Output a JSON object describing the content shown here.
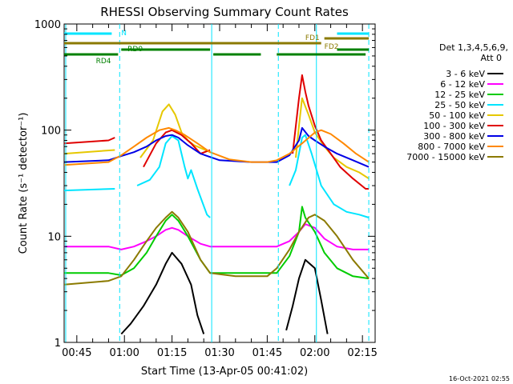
{
  "chart_data": {
    "type": "line",
    "title": "RHESSI Observing Summary Count Rates",
    "xlabel": "Start Time (13-Apr-05 00:41:02)",
    "ylabel": "Count Rate (s⁻¹ detector⁻¹)",
    "footer": "16-Oct-2021 02:55",
    "yscale": "log",
    "ylim": [
      1,
      1000
    ],
    "y_ticks": [
      {
        "value": 1,
        "label": "1"
      },
      {
        "value": 10,
        "label": "10"
      },
      {
        "value": 100,
        "label": "100"
      },
      {
        "value": 1000,
        "label": "1000"
      }
    ],
    "xlim": [
      "00:41",
      "02:19"
    ],
    "x_ticks": [
      {
        "value": "00:45",
        "label": "00:45"
      },
      {
        "value": "01:00",
        "label": "01:00"
      },
      {
        "value": "01:15",
        "label": "01:15"
      },
      {
        "value": "01:30",
        "label": "01:30"
      },
      {
        "value": "01:45",
        "label": "01:45"
      },
      {
        "value": "02:00",
        "label": "02:00"
      },
      {
        "value": "02:15",
        "label": "02:15"
      }
    ],
    "legend": {
      "placement": "right",
      "header": [
        "Det 1,3,4,5,6,9,",
        "Att 0"
      ]
    },
    "series": [
      {
        "name": "3 - 6 keV",
        "color": "#000000",
        "x": [
          "00:41",
          "00:58",
          "00:59",
          "01:02",
          "01:06",
          "01:10",
          "01:13",
          "01:15",
          "01:18",
          "01:21",
          "01:23",
          "01:25",
          "01:27",
          "01:48",
          "01:51",
          "01:53",
          "01:55",
          "01:57",
          "02:00",
          "02:02",
          "02:04",
          "02:06"
        ],
        "y": [
          null,
          null,
          1.2,
          1.5,
          2.2,
          3.5,
          5.5,
          7,
          5.5,
          3.5,
          1.8,
          1.2,
          null,
          null,
          1.3,
          2.2,
          4,
          6,
          5,
          2.5,
          1.2,
          null
        ]
      },
      {
        "name": "6 - 12 keV",
        "color": "#ff00ff",
        "x": [
          "00:41",
          "00:55",
          "00:59",
          "01:03",
          "01:07",
          "01:10",
          "01:13",
          "01:15",
          "01:17",
          "01:20",
          "01:24",
          "01:27",
          "01:35",
          "01:45",
          "01:48",
          "01:52",
          "01:55",
          "01:57",
          "02:00",
          "02:03",
          "02:07",
          "02:12",
          "02:17"
        ],
        "y": [
          8,
          8,
          7.5,
          8,
          9,
          10,
          11.5,
          12,
          11.5,
          10,
          8.5,
          8,
          8,
          8,
          8,
          9,
          11,
          13,
          12,
          9.5,
          8,
          7.5,
          7.5
        ]
      },
      {
        "name": "12 - 25 keV",
        "color": "#00cc00",
        "x": [
          "00:41",
          "00:55",
          "00:59",
          "01:03",
          "01:07",
          "01:10",
          "01:13",
          "01:15",
          "01:17",
          "01:20",
          "01:24",
          "01:27",
          "01:35",
          "01:45",
          "01:48",
          "01:52",
          "01:55",
          "01:56",
          "01:57",
          "02:00",
          "02:03",
          "02:07",
          "02:12",
          "02:17"
        ],
        "y": [
          4.5,
          4.5,
          4.3,
          5,
          7,
          10,
          14,
          16,
          14,
          10,
          6,
          4.5,
          4.5,
          4.5,
          4.5,
          6.5,
          11,
          19,
          15,
          11,
          7,
          5,
          4.2,
          4
        ]
      },
      {
        "name": "25 - 50 keV",
        "color": "#00e5ff",
        "x": [
          "00:41",
          "00:57",
          "00:58",
          "01:00",
          "01:04",
          "01:08",
          "01:11",
          "01:13",
          "01:15",
          "01:17",
          "01:19",
          "01:20",
          "01:21",
          "01:23",
          "01:26",
          "01:27",
          "01:48",
          "01:50",
          "01:52",
          "01:54",
          "01:56",
          "01:57",
          "01:59",
          "02:02",
          "02:06",
          "02:10",
          "02:14",
          "02:17"
        ],
        "y": [
          27,
          28,
          null,
          null,
          30,
          34,
          45,
          75,
          88,
          80,
          45,
          35,
          42,
          28,
          16,
          15,
          null,
          null,
          30,
          42,
          85,
          90,
          60,
          30,
          20,
          17,
          16,
          15
        ]
      },
      {
        "name": "50 - 100 keV",
        "color": "#e6c800",
        "x": [
          "00:41",
          "00:57",
          "00:58",
          "01:01",
          "01:05",
          "01:09",
          "01:12",
          "01:14",
          "01:16",
          "01:18",
          "01:20",
          "01:22",
          "01:24",
          "01:27",
          "01:48",
          "01:51",
          "01:54",
          "01:55",
          "01:56",
          "01:58",
          "02:00",
          "02:03",
          "02:06",
          "02:10",
          "02:14",
          "02:17"
        ],
        "y": [
          60,
          65,
          null,
          null,
          55,
          80,
          150,
          175,
          140,
          95,
          80,
          72,
          68,
          62,
          null,
          null,
          55,
          110,
          200,
          140,
          95,
          70,
          55,
          45,
          40,
          35
        ]
      },
      {
        "name": "100 - 300 keV",
        "color": "#e00000",
        "x": [
          "00:41",
          "00:55",
          "00:57",
          "00:58",
          "01:02",
          "01:06",
          "01:10",
          "01:13",
          "01:15",
          "01:18",
          "01:21",
          "01:24",
          "01:27",
          "01:48",
          "01:51",
          "01:53",
          "01:55",
          "01:56",
          "01:57",
          "01:58",
          "02:00",
          "02:02",
          "02:05",
          "02:08",
          "02:12",
          "02:16",
          "02:17"
        ],
        "y": [
          75,
          80,
          85,
          null,
          null,
          45,
          75,
          95,
          100,
          90,
          75,
          60,
          65,
          null,
          null,
          60,
          200,
          330,
          230,
          170,
          110,
          80,
          60,
          45,
          35,
          28,
          28
        ]
      },
      {
        "name": "300 - 800 keV",
        "color": "#0000e6",
        "x": [
          "00:41",
          "00:55",
          "00:59",
          "01:03",
          "01:07",
          "01:10",
          "01:13",
          "01:15",
          "01:17",
          "01:20",
          "01:24",
          "01:30",
          "01:40",
          "01:45",
          "01:48",
          "01:52",
          "01:55",
          "01:56",
          "01:58",
          "02:00",
          "02:03",
          "02:07",
          "02:12",
          "02:17"
        ],
        "y": [
          50,
          52,
          57,
          62,
          70,
          80,
          88,
          90,
          85,
          72,
          60,
          52,
          50,
          50,
          50,
          58,
          80,
          105,
          88,
          80,
          70,
          60,
          52,
          45
        ]
      },
      {
        "name": "800 - 7000 keV",
        "color": "#ff8800",
        "x": [
          "00:41",
          "00:55",
          "00:59",
          "01:03",
          "01:07",
          "01:11",
          "01:14",
          "01:16",
          "01:19",
          "01:23",
          "01:27",
          "01:33",
          "01:40",
          "01:45",
          "01:48",
          "01:52",
          "01:56",
          "02:00",
          "02:02",
          "02:05",
          "02:09",
          "02:13",
          "02:17"
        ],
        "y": [
          47,
          50,
          58,
          70,
          85,
          100,
          105,
          100,
          90,
          75,
          62,
          53,
          50,
          50,
          52,
          60,
          75,
          95,
          100,
          92,
          75,
          60,
          50
        ]
      },
      {
        "name": "7000 - 15000 keV",
        "color": "#8b7a00",
        "x": [
          "00:41",
          "00:55",
          "00:59",
          "01:03",
          "01:07",
          "01:10",
          "01:13",
          "01:15",
          "01:17",
          "01:20",
          "01:24",
          "01:27",
          "01:35",
          "01:45",
          "01:48",
          "01:52",
          "01:55",
          "01:58",
          "02:00",
          "02:03",
          "02:07",
          "02:12",
          "02:17"
        ],
        "y": [
          3.5,
          3.8,
          4.2,
          6,
          9,
          12,
          15,
          17,
          15,
          11,
          6,
          4.5,
          4.2,
          4.2,
          5,
          7.5,
          11,
          15,
          16,
          14,
          10,
          6,
          4
        ]
      }
    ],
    "vertical_lines": [
      {
        "x": "00:41:30",
        "style": "solid"
      },
      {
        "x": "00:58:30",
        "style": "dashed"
      },
      {
        "x": "01:27:30",
        "style": "solid"
      },
      {
        "x": "01:48:30",
        "style": "dashed"
      },
      {
        "x": "02:00:30",
        "style": "solid"
      },
      {
        "x": "02:17:00",
        "style": "dashed"
      }
    ],
    "annotations": [
      {
        "label": "N",
        "color": "#00e5ff",
        "segments": [
          [
            "00:41",
            "00:56"
          ],
          [
            "02:07",
            "02:17"
          ]
        ],
        "label_x": "00:59",
        "level": 1
      },
      {
        "label": "FD1",
        "color": "#8b7a00",
        "segments": [
          [
            "00:41",
            "02:02"
          ]
        ],
        "label_x": "01:57",
        "level": 2
      },
      {
        "label": "FD2",
        "color": "#8b7a00",
        "segments": [
          [
            "02:03",
            "02:17"
          ]
        ],
        "label_x": "02:03",
        "level": 3
      },
      {
        "label": "RD0",
        "color": "#008000",
        "segments": [
          [
            "00:59",
            "01:27"
          ],
          [
            "02:07",
            "02:17"
          ]
        ],
        "label_x": "01:01",
        "level": 4
      },
      {
        "label": "RD4",
        "color": "#008000",
        "segments": [
          [
            "00:41",
            "00:58"
          ],
          [
            "01:28",
            "01:43"
          ],
          [
            "01:48",
            "02:16"
          ]
        ],
        "label_x": "00:51",
        "level": 5
      }
    ]
  }
}
